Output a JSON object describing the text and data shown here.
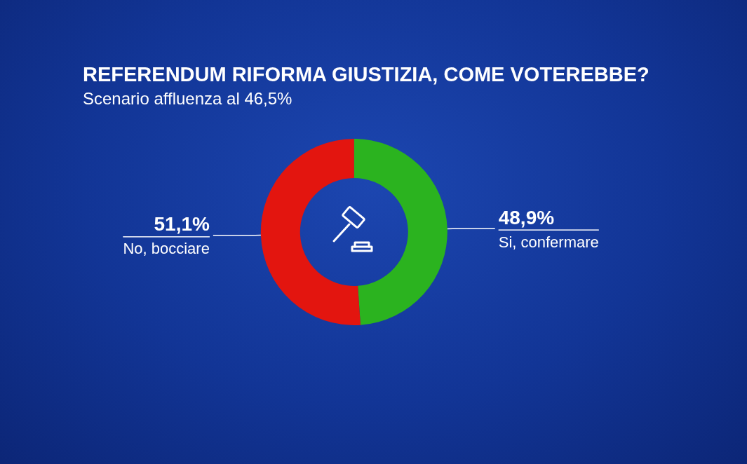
{
  "chart_data": {
    "type": "donut",
    "title": "REFERENDUM RIFORMA GIUSTIZIA, COME VOTEREBBE?",
    "subtitle": "Scenario affluenza al 46,5%",
    "categories": [
      "Si, confermare",
      "No, bocciare"
    ],
    "values": [
      48.9,
      51.1
    ],
    "value_labels": [
      "48,9%",
      "51,1%"
    ],
    "colors": [
      "#2bb31f",
      "#e3150f"
    ],
    "legend": false
  }
}
